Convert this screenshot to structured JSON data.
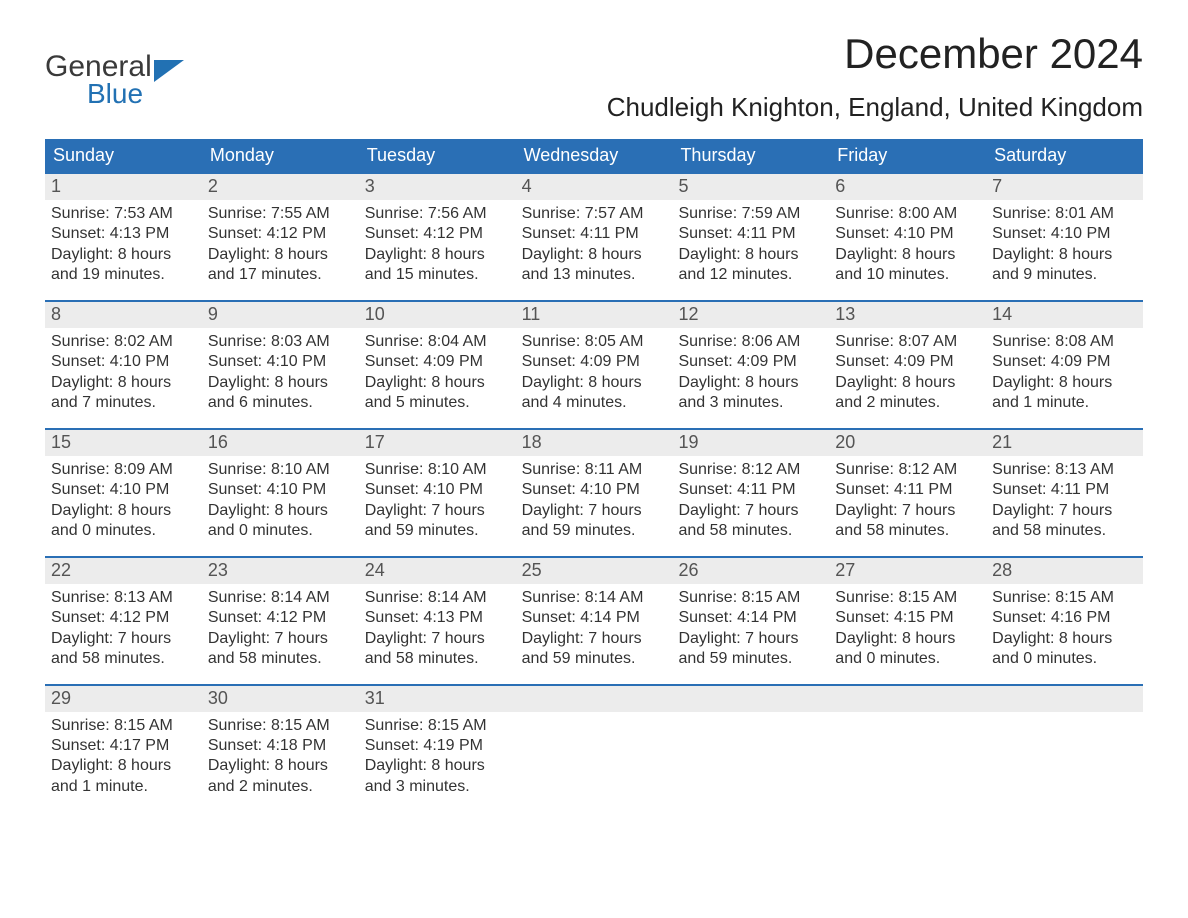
{
  "brand": {
    "word1": "General",
    "word2": "Blue",
    "color": "#2271b3"
  },
  "title": "December 2024",
  "location": "Chudleigh Knighton, England, United Kingdom",
  "header_bg": "#2a6fb5",
  "daynum_bg": "#ececec",
  "border_color": "#2a6fb5",
  "weekdays": [
    "Sunday",
    "Monday",
    "Tuesday",
    "Wednesday",
    "Thursday",
    "Friday",
    "Saturday"
  ],
  "weeks": [
    [
      {
        "n": "1",
        "sr": "Sunrise: 7:53 AM",
        "ss": "Sunset: 4:13 PM",
        "d1": "Daylight: 8 hours",
        "d2": "and 19 minutes."
      },
      {
        "n": "2",
        "sr": "Sunrise: 7:55 AM",
        "ss": "Sunset: 4:12 PM",
        "d1": "Daylight: 8 hours",
        "d2": "and 17 minutes."
      },
      {
        "n": "3",
        "sr": "Sunrise: 7:56 AM",
        "ss": "Sunset: 4:12 PM",
        "d1": "Daylight: 8 hours",
        "d2": "and 15 minutes."
      },
      {
        "n": "4",
        "sr": "Sunrise: 7:57 AM",
        "ss": "Sunset: 4:11 PM",
        "d1": "Daylight: 8 hours",
        "d2": "and 13 minutes."
      },
      {
        "n": "5",
        "sr": "Sunrise: 7:59 AM",
        "ss": "Sunset: 4:11 PM",
        "d1": "Daylight: 8 hours",
        "d2": "and 12 minutes."
      },
      {
        "n": "6",
        "sr": "Sunrise: 8:00 AM",
        "ss": "Sunset: 4:10 PM",
        "d1": "Daylight: 8 hours",
        "d2": "and 10 minutes."
      },
      {
        "n": "7",
        "sr": "Sunrise: 8:01 AM",
        "ss": "Sunset: 4:10 PM",
        "d1": "Daylight: 8 hours",
        "d2": "and 9 minutes."
      }
    ],
    [
      {
        "n": "8",
        "sr": "Sunrise: 8:02 AM",
        "ss": "Sunset: 4:10 PM",
        "d1": "Daylight: 8 hours",
        "d2": "and 7 minutes."
      },
      {
        "n": "9",
        "sr": "Sunrise: 8:03 AM",
        "ss": "Sunset: 4:10 PM",
        "d1": "Daylight: 8 hours",
        "d2": "and 6 minutes."
      },
      {
        "n": "10",
        "sr": "Sunrise: 8:04 AM",
        "ss": "Sunset: 4:09 PM",
        "d1": "Daylight: 8 hours",
        "d2": "and 5 minutes."
      },
      {
        "n": "11",
        "sr": "Sunrise: 8:05 AM",
        "ss": "Sunset: 4:09 PM",
        "d1": "Daylight: 8 hours",
        "d2": "and 4 minutes."
      },
      {
        "n": "12",
        "sr": "Sunrise: 8:06 AM",
        "ss": "Sunset: 4:09 PM",
        "d1": "Daylight: 8 hours",
        "d2": "and 3 minutes."
      },
      {
        "n": "13",
        "sr": "Sunrise: 8:07 AM",
        "ss": "Sunset: 4:09 PM",
        "d1": "Daylight: 8 hours",
        "d2": "and 2 minutes."
      },
      {
        "n": "14",
        "sr": "Sunrise: 8:08 AM",
        "ss": "Sunset: 4:09 PM",
        "d1": "Daylight: 8 hours",
        "d2": "and 1 minute."
      }
    ],
    [
      {
        "n": "15",
        "sr": "Sunrise: 8:09 AM",
        "ss": "Sunset: 4:10 PM",
        "d1": "Daylight: 8 hours",
        "d2": "and 0 minutes."
      },
      {
        "n": "16",
        "sr": "Sunrise: 8:10 AM",
        "ss": "Sunset: 4:10 PM",
        "d1": "Daylight: 8 hours",
        "d2": "and 0 minutes."
      },
      {
        "n": "17",
        "sr": "Sunrise: 8:10 AM",
        "ss": "Sunset: 4:10 PM",
        "d1": "Daylight: 7 hours",
        "d2": "and 59 minutes."
      },
      {
        "n": "18",
        "sr": "Sunrise: 8:11 AM",
        "ss": "Sunset: 4:10 PM",
        "d1": "Daylight: 7 hours",
        "d2": "and 59 minutes."
      },
      {
        "n": "19",
        "sr": "Sunrise: 8:12 AM",
        "ss": "Sunset: 4:11 PM",
        "d1": "Daylight: 7 hours",
        "d2": "and 58 minutes."
      },
      {
        "n": "20",
        "sr": "Sunrise: 8:12 AM",
        "ss": "Sunset: 4:11 PM",
        "d1": "Daylight: 7 hours",
        "d2": "and 58 minutes."
      },
      {
        "n": "21",
        "sr": "Sunrise: 8:13 AM",
        "ss": "Sunset: 4:11 PM",
        "d1": "Daylight: 7 hours",
        "d2": "and 58 minutes."
      }
    ],
    [
      {
        "n": "22",
        "sr": "Sunrise: 8:13 AM",
        "ss": "Sunset: 4:12 PM",
        "d1": "Daylight: 7 hours",
        "d2": "and 58 minutes."
      },
      {
        "n": "23",
        "sr": "Sunrise: 8:14 AM",
        "ss": "Sunset: 4:12 PM",
        "d1": "Daylight: 7 hours",
        "d2": "and 58 minutes."
      },
      {
        "n": "24",
        "sr": "Sunrise: 8:14 AM",
        "ss": "Sunset: 4:13 PM",
        "d1": "Daylight: 7 hours",
        "d2": "and 58 minutes."
      },
      {
        "n": "25",
        "sr": "Sunrise: 8:14 AM",
        "ss": "Sunset: 4:14 PM",
        "d1": "Daylight: 7 hours",
        "d2": "and 59 minutes."
      },
      {
        "n": "26",
        "sr": "Sunrise: 8:15 AM",
        "ss": "Sunset: 4:14 PM",
        "d1": "Daylight: 7 hours",
        "d2": "and 59 minutes."
      },
      {
        "n": "27",
        "sr": "Sunrise: 8:15 AM",
        "ss": "Sunset: 4:15 PM",
        "d1": "Daylight: 8 hours",
        "d2": "and 0 minutes."
      },
      {
        "n": "28",
        "sr": "Sunrise: 8:15 AM",
        "ss": "Sunset: 4:16 PM",
        "d1": "Daylight: 8 hours",
        "d2": "and 0 minutes."
      }
    ],
    [
      {
        "n": "29",
        "sr": "Sunrise: 8:15 AM",
        "ss": "Sunset: 4:17 PM",
        "d1": "Daylight: 8 hours",
        "d2": "and 1 minute."
      },
      {
        "n": "30",
        "sr": "Sunrise: 8:15 AM",
        "ss": "Sunset: 4:18 PM",
        "d1": "Daylight: 8 hours",
        "d2": "and 2 minutes."
      },
      {
        "n": "31",
        "sr": "Sunrise: 8:15 AM",
        "ss": "Sunset: 4:19 PM",
        "d1": "Daylight: 8 hours",
        "d2": "and 3 minutes."
      },
      {
        "n": "",
        "sr": "",
        "ss": "",
        "d1": "",
        "d2": "",
        "empty": true
      },
      {
        "n": "",
        "sr": "",
        "ss": "",
        "d1": "",
        "d2": "",
        "empty": true
      },
      {
        "n": "",
        "sr": "",
        "ss": "",
        "d1": "",
        "d2": "",
        "empty": true
      },
      {
        "n": "",
        "sr": "",
        "ss": "",
        "d1": "",
        "d2": "",
        "empty": true
      }
    ]
  ]
}
